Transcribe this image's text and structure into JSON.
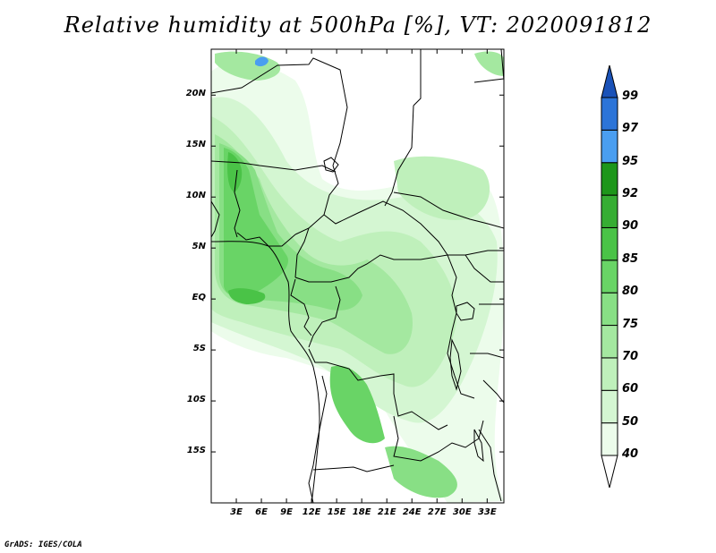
{
  "title": "Relative humidity at 500hPa [%], VT: 2020091812",
  "credit": "GrADS: IGES/COLA",
  "lat_labels": [
    "20N",
    "15N",
    "10N",
    "5N",
    "EQ",
    "5S",
    "10S",
    "15S"
  ],
  "lat_values": [
    20,
    15,
    10,
    5,
    0,
    -5,
    -10,
    -15
  ],
  "lon_labels": [
    "3E",
    "6E",
    "9E",
    "12E",
    "15E",
    "18E",
    "21E",
    "24E",
    "27E",
    "30E",
    "33E"
  ],
  "lon_values": [
    3,
    6,
    9,
    12,
    15,
    18,
    21,
    24,
    27,
    30,
    33
  ],
  "lon_range": [
    0,
    35
  ],
  "lat_range": [
    -20,
    24.5
  ],
  "colorbar": {
    "levels": [
      "40",
      "50",
      "60",
      "70",
      "75",
      "80",
      "85",
      "90",
      "92",
      "95",
      "97",
      "99"
    ],
    "colors": [
      "#ffffff",
      "#ecfceb",
      "#d4f6d2",
      "#bff0bb",
      "#a4e8a0",
      "#88df85",
      "#69d466",
      "#4ac347",
      "#36ad33",
      "#1d961a",
      "#4a9ef0",
      "#2c74d8",
      "#1a52b8"
    ]
  },
  "colors": {
    "land_outline": "#000000",
    "frame": "#000000"
  }
}
